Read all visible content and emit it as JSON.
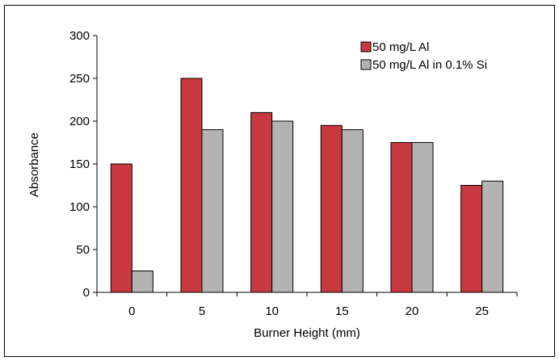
{
  "chart_data": {
    "type": "bar",
    "title": "",
    "xlabel": "Burner Height (mm)",
    "ylabel": "Absorbance",
    "categories": [
      "0",
      "5",
      "10",
      "15",
      "20",
      "25"
    ],
    "series": [
      {
        "name": "50 mg/L Al",
        "color": "#c8383f",
        "values": [
          150,
          250,
          210,
          195,
          175,
          125
        ]
      },
      {
        "name": "50 mg/L Al in 0.1% Si",
        "color": "#b3b3b3",
        "values": [
          25,
          190,
          200,
          190,
          175,
          130
        ]
      }
    ],
    "ylim": [
      0,
      300
    ],
    "yticks": [
      0,
      50,
      100,
      150,
      200,
      250,
      300
    ],
    "grid": false,
    "legend_position": "top-right"
  }
}
